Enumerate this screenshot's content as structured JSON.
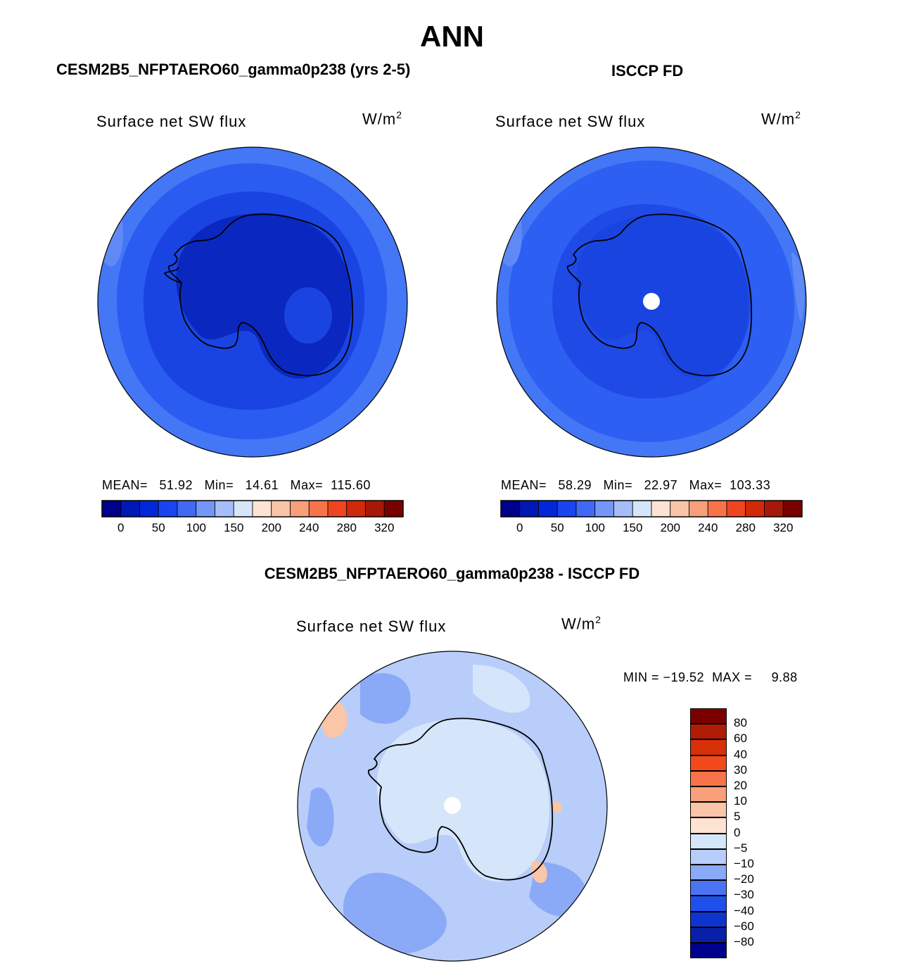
{
  "figure": {
    "title": "ANN"
  },
  "panels": {
    "model": {
      "title": "CESM2B5_NFPTAERO60_gamma0p238 (yrs 2-5)",
      "variable": "Surface net SW flux",
      "units_base": "W/m",
      "units_exp": "2",
      "stats": "MEAN=   51.92   Min=   14.61   Max=  115.60"
    },
    "obs": {
      "title": "ISCCP FD",
      "variable": "Surface net SW flux",
      "units_base": "W/m",
      "units_exp": "2",
      "stats": "MEAN=   58.29   Min=   22.97   Max=  103.33"
    },
    "diff": {
      "title": "CESM2B5_NFPTAERO60_gamma0p238 - ISCCP FD",
      "variable": "Surface net SW flux",
      "units_base": "W/m",
      "units_exp": "2",
      "stats": "MIN = −19.52  MAX =     9.88"
    }
  },
  "chart_data": [
    {
      "type": "heatmap",
      "projection": "south polar stereographic",
      "title": "CESM2B5_NFPTAERO60_gamma0p238 (yrs 2-5)",
      "variable": "Surface net SW flux",
      "units": "W/m2",
      "stats": {
        "mean": 51.92,
        "min": 14.61,
        "max": 115.6
      },
      "colorbar": {
        "orientation": "horizontal",
        "tick_labels": [
          "0",
          "50",
          "100",
          "150",
          "200",
          "240",
          "280",
          "320"
        ],
        "colors": [
          "#00008c",
          "#0018b5",
          "#0028d8",
          "#1a44ef",
          "#4169f5",
          "#7396f7",
          "#a5bdf8",
          "#d5e6fa",
          "#fde3d2",
          "#fac4a8",
          "#f79f7a",
          "#f7744a",
          "#ee4520",
          "#d12a08",
          "#a81808",
          "#7a0000"
        ]
      },
      "fields": [
        {
          "region": "outer ocean ring",
          "color": "#4477f5"
        },
        {
          "region": "middle ocean",
          "color": "#2a5cf2"
        },
        {
          "region": "sea-ice zone",
          "color": "#1a44e2"
        },
        {
          "region": "continent interior",
          "color": "#0a28bf"
        }
      ]
    },
    {
      "type": "heatmap",
      "projection": "south polar stereographic",
      "title": "ISCCP FD",
      "variable": "Surface net SW flux",
      "units": "W/m2",
      "stats": {
        "mean": 58.29,
        "min": 22.97,
        "max": 103.33
      },
      "colorbar": {
        "orientation": "horizontal",
        "tick_labels": [
          "0",
          "50",
          "100",
          "150",
          "200",
          "240",
          "280",
          "320"
        ],
        "colors": [
          "#00008c",
          "#0018b5",
          "#0028d8",
          "#1a44ef",
          "#4169f5",
          "#7396f7",
          "#a5bdf8",
          "#d5e6fa",
          "#fde3d2",
          "#fac4a8",
          "#f79f7a",
          "#f7744a",
          "#ee4520",
          "#d12a08",
          "#a81808",
          "#7a0000"
        ]
      },
      "fields": [
        {
          "region": "outer ocean ring",
          "color": "#4477f5"
        },
        {
          "region": "middle ocean",
          "color": "#2d5ff2"
        },
        {
          "region": "sea-ice zone",
          "color": "#1f4ae6"
        },
        {
          "region": "continent interior",
          "color": "#1a44e0"
        }
      ]
    },
    {
      "type": "heatmap",
      "projection": "south polar stereographic",
      "title": "CESM2B5_NFPTAERO60_gamma0p238 - ISCCP FD",
      "variable": "Surface net SW flux",
      "units": "W/m2",
      "stats": {
        "min": -19.52,
        "max": 9.88
      },
      "colorbar": {
        "orientation": "vertical",
        "tick_labels": [
          "80",
          "60",
          "40",
          "30",
          "20",
          "10",
          "5",
          "0",
          "−5",
          "−10",
          "−20",
          "−30",
          "−40",
          "−60",
          "−80"
        ],
        "colors": [
          "#7a0000",
          "#b01c04",
          "#d83008",
          "#f24a1a",
          "#f7744a",
          "#f9a07a",
          "#fbc5a8",
          "#fde3d2",
          "#d5e6fa",
          "#b8cdf9",
          "#8aa9f7",
          "#4a74f4",
          "#2050ec",
          "#0e34cf",
          "#0820a8",
          "#00008c"
        ]
      },
      "fields": [
        {
          "region": "ocean",
          "color": "#b8cdf9"
        },
        {
          "region": "strong negative patches",
          "color": "#8aa9f7"
        },
        {
          "region": "near-zero areas",
          "color": "#d5e6fa"
        },
        {
          "region": "small positive patches",
          "color": "#fbc5a8"
        }
      ]
    }
  ]
}
